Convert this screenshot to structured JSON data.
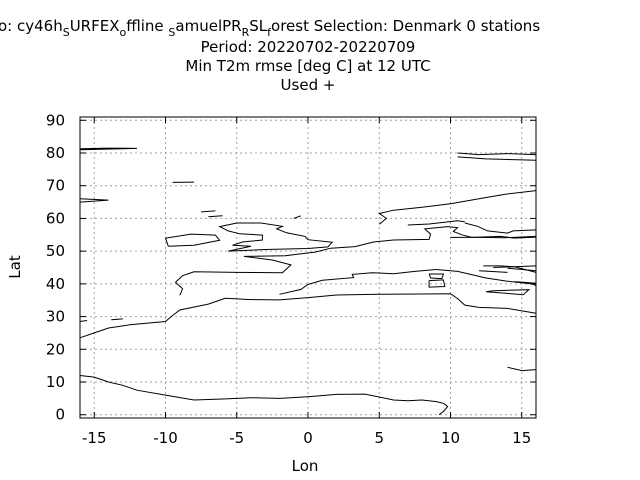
{
  "title": {
    "line1_parts": [
      {
        "t": "o: cy46h",
        "sub": false
      },
      {
        "t": "S",
        "sub": true
      },
      {
        "t": "URFEX",
        "sub": false
      },
      {
        "t": "o",
        "sub": true
      },
      {
        "t": "ffline ",
        "sub": false
      },
      {
        "t": "S",
        "sub": true
      },
      {
        "t": "amuelPR",
        "sub": false
      },
      {
        "t": "R",
        "sub": true
      },
      {
        "t": "SL",
        "sub": false
      },
      {
        "t": "f",
        "sub": true
      },
      {
        "t": "orest   Selection: Denmark      0 stations",
        "sub": false
      }
    ],
    "line2": "Period: 20220702-20220709",
    "line3": "Min T2m rmse [deg C] at  12 UTC",
    "line4": "Used   +"
  },
  "chart_data": {
    "type": "scatter",
    "xlabel": "Lon",
    "ylabel": "Lat",
    "xlim": [
      -16,
      16
    ],
    "ylim": [
      -1,
      91
    ],
    "xticks": [
      -15,
      -10,
      -5,
      0,
      5,
      10,
      15
    ],
    "yticks": [
      0,
      10,
      20,
      30,
      40,
      50,
      60,
      70,
      80,
      90
    ],
    "grid": true,
    "series": [],
    "coastlines": [
      [
        [
          -16,
          23.5
        ],
        [
          -15,
          25
        ],
        [
          -14,
          26.5
        ],
        [
          -12.5,
          27.5
        ],
        [
          -10,
          28.5
        ],
        [
          -9.6,
          30
        ],
        [
          -9,
          32
        ],
        [
          -7,
          33.8
        ],
        [
          -5.8,
          35.6
        ],
        [
          -4,
          35.2
        ],
        [
          -2,
          35.1
        ],
        [
          0,
          35.8
        ],
        [
          2,
          36.6
        ],
        [
          5,
          36.8
        ],
        [
          8,
          36.9
        ],
        [
          10,
          37
        ],
        [
          10.5,
          35.5
        ],
        [
          11,
          33.5
        ],
        [
          12,
          32.8
        ],
        [
          14,
          32.5
        ],
        [
          16,
          31
        ]
      ],
      [
        [
          -16,
          12
        ],
        [
          -15,
          11.5
        ],
        [
          -14,
          10
        ],
        [
          -13,
          9
        ],
        [
          -12,
          7.5
        ],
        [
          -10,
          6
        ],
        [
          -8,
          4.5
        ],
        [
          -6,
          4.8
        ],
        [
          -4,
          5.2
        ],
        [
          -2,
          5
        ],
        [
          0,
          5.5
        ],
        [
          2,
          6.2
        ],
        [
          4,
          6.3
        ],
        [
          6,
          4.5
        ],
        [
          7,
          4.3
        ],
        [
          8,
          4.5
        ],
        [
          9,
          4
        ],
        [
          9.5,
          3.5
        ],
        [
          9.8,
          2.5
        ],
        [
          9.5,
          1
        ],
        [
          9.2,
          0
        ]
      ],
      [
        [
          -9,
          36.5
        ],
        [
          -8.8,
          38.5
        ],
        [
          -9.3,
          40.5
        ],
        [
          -8.8,
          42.5
        ],
        [
          -8,
          43.7
        ],
        [
          -5,
          43.5
        ],
        [
          -1.8,
          43.4
        ],
        [
          -1.2,
          45.8
        ],
        [
          -2.5,
          47.3
        ],
        [
          -4.5,
          48.4
        ],
        [
          -1.6,
          48.6
        ],
        [
          0.5,
          49.7
        ],
        [
          1.6,
          50.9
        ],
        [
          3.3,
          51.4
        ],
        [
          4.6,
          52.8
        ],
        [
          6,
          53.4
        ],
        [
          8.5,
          53.6
        ],
        [
          8.6,
          55.2
        ],
        [
          8.2,
          56.8
        ],
        [
          9.8,
          57.5
        ],
        [
          10.5,
          57.2
        ],
        [
          10.2,
          56
        ],
        [
          10.8,
          55
        ],
        [
          11.5,
          54.2
        ],
        [
          13.5,
          54.5
        ],
        [
          14.5,
          54
        ],
        [
          16,
          54.3
        ]
      ],
      [
        [
          -9.8,
          51.5
        ],
        [
          -8,
          51.8
        ],
        [
          -6.2,
          53.3
        ],
        [
          -6.5,
          54.9
        ],
        [
          -8.2,
          55.2
        ],
        [
          -10,
          54
        ],
        [
          -9.8,
          51.5
        ]
      ],
      [
        [
          -5.6,
          50
        ],
        [
          -3,
          50.5
        ],
        [
          0,
          50.8
        ],
        [
          1.4,
          51.3
        ],
        [
          1.7,
          52.7
        ],
        [
          0,
          53.5
        ],
        [
          -0.2,
          54.5
        ],
        [
          -1.5,
          55.6
        ],
        [
          -2.2,
          56.8
        ],
        [
          -1.8,
          57.6
        ],
        [
          -3.3,
          58.6
        ],
        [
          -5,
          58.6
        ],
        [
          -6.2,
          57.5
        ],
        [
          -5.6,
          56.2
        ],
        [
          -4.8,
          55.3
        ],
        [
          -3.2,
          54.9
        ],
        [
          -3.2,
          53.4
        ],
        [
          -4.6,
          52.8
        ],
        [
          -5.3,
          51.8
        ],
        [
          -4,
          51.5
        ],
        [
          -5.6,
          50
        ]
      ],
      [
        [
          5,
          58.2
        ],
        [
          5.5,
          60
        ],
        [
          5,
          61.5
        ],
        [
          6,
          62.5
        ],
        [
          8,
          63.4
        ],
        [
          10,
          64.5
        ],
        [
          12,
          66
        ],
        [
          14,
          67.5
        ],
        [
          16,
          68.5
        ]
      ],
      [
        [
          7,
          58
        ],
        [
          8.5,
          58.3
        ],
        [
          10.5,
          59.3
        ],
        [
          11,
          59
        ]
      ],
      [
        [
          11,
          58.6
        ],
        [
          11.9,
          57.6
        ],
        [
          12.6,
          56.2
        ],
        [
          14,
          55.5
        ],
        [
          14.4,
          56.2
        ],
        [
          16,
          56.5
        ]
      ],
      [
        [
          10,
          54.2
        ],
        [
          12,
          54.2
        ],
        [
          13.8,
          54.1
        ],
        [
          16,
          54.5
        ]
      ],
      [
        [
          9,
          44.4
        ],
        [
          10.5,
          43.8
        ],
        [
          12.5,
          41.8
        ],
        [
          14,
          40.8
        ],
        [
          15.7,
          40
        ],
        [
          16,
          39.5
        ]
      ],
      [
        [
          9,
          44.4
        ],
        [
          7.5,
          43.8
        ],
        [
          6,
          43.1
        ],
        [
          4.5,
          43.4
        ],
        [
          3.1,
          42.9
        ],
        [
          3.2,
          41.9
        ],
        [
          1,
          41.1
        ],
        [
          0,
          39.8
        ],
        [
          -0.5,
          38.3
        ],
        [
          -2,
          36.8
        ]
      ],
      [
        [
          12.3,
          45.5
        ],
        [
          13.5,
          45.5
        ],
        [
          14.5,
          45.2
        ],
        [
          16,
          43.5
        ]
      ],
      [
        [
          8.5,
          41
        ],
        [
          9.5,
          41.2
        ],
        [
          9.6,
          39.2
        ],
        [
          8.5,
          39
        ],
        [
          8.5,
          41
        ]
      ],
      [
        [
          8.5,
          43
        ],
        [
          9.5,
          43
        ],
        [
          9.4,
          41.6
        ],
        [
          8.6,
          41.8
        ],
        [
          8.5,
          43
        ]
      ],
      [
        [
          13,
          37.9
        ],
        [
          15.5,
          38.2
        ],
        [
          15.1,
          36.7
        ],
        [
          12.5,
          37.6
        ],
        [
          13,
          37.9
        ]
      ],
      [
        [
          -16,
          81.3
        ],
        [
          -14,
          81.5
        ],
        [
          -12,
          81.4
        ],
        [
          -16,
          81
        ]
      ],
      [
        [
          -16,
          66
        ],
        [
          -14,
          65.6
        ],
        [
          -16,
          65
        ]
      ],
      [
        [
          10.5,
          80
        ],
        [
          12,
          79.5
        ],
        [
          14,
          79.8
        ],
        [
          16,
          79.5
        ]
      ],
      [
        [
          10.5,
          78.8
        ],
        [
          12.5,
          78.2
        ],
        [
          16,
          77.8
        ]
      ],
      [
        [
          14,
          14.5
        ],
        [
          15,
          13.5
        ],
        [
          16,
          13.8
        ]
      ],
      [
        [
          -16,
          28.5
        ],
        [
          -15.5,
          28.8
        ]
      ],
      [
        [
          -13.8,
          29
        ],
        [
          -13,
          29.3
        ]
      ],
      [
        [
          -9.5,
          71
        ],
        [
          -8,
          71.1
        ]
      ],
      [
        [
          -7.5,
          62
        ],
        [
          -6.5,
          62.3
        ]
      ],
      [
        [
          -7,
          60.5
        ],
        [
          -6,
          60.8
        ]
      ],
      [
        [
          -1,
          60
        ],
        [
          -0.5,
          60.8
        ]
      ],
      [
        [
          12,
          44
        ],
        [
          14,
          43.5
        ]
      ],
      [
        [
          13,
          45
        ],
        [
          16,
          45.5
        ]
      ],
      [
        [
          14.5,
          40.7
        ],
        [
          16,
          40.2
        ]
      ],
      [
        [
          14,
          44.8
        ],
        [
          16,
          44
        ]
      ]
    ]
  }
}
